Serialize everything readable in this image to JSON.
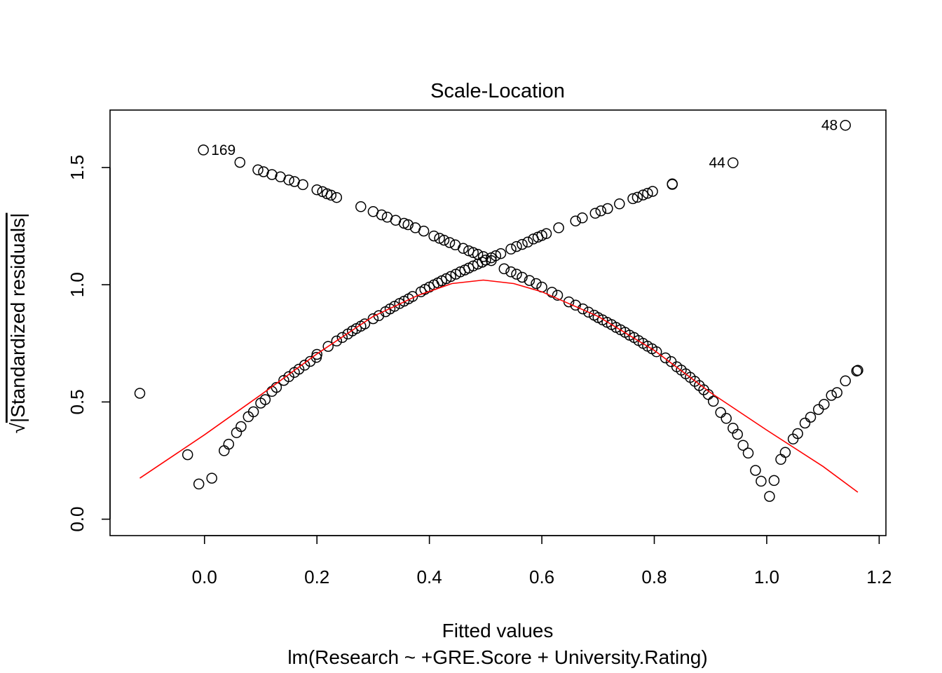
{
  "chart_data": {
    "type": "scatter",
    "title": "Scale-Location",
    "xlabel": "Fitted values",
    "subtitle": "lm(Research ~ +GRE.Score + University.Rating)",
    "ylabel_radical": "√",
    "ylabel": "|Standardized residuals|",
    "xlim": [
      -0.168,
      1.212
    ],
    "ylim": [
      -0.07,
      1.745
    ],
    "x_ticks": [
      0.0,
      0.2,
      0.4,
      0.6,
      0.8,
      1.0,
      1.2
    ],
    "x_tick_labels": [
      "0.0",
      "0.2",
      "0.4",
      "0.6",
      "0.8",
      "1.0",
      "1.2"
    ],
    "y_ticks": [
      0.0,
      0.5,
      1.0,
      1.5
    ],
    "y_tick_labels": [
      "0.0",
      "0.5",
      "1.0",
      "1.5"
    ],
    "colors": {
      "points": "#000000",
      "smooth": "#ff0000",
      "frame": "#000000"
    },
    "series": [
      {
        "marker": "open-circle",
        "points": [
          [
            -0.115,
            0.537
          ],
          [
            -0.03,
            0.275
          ],
          [
            -0.01,
            0.15
          ],
          [
            0.013,
            0.175
          ],
          [
            0.035,
            0.292
          ],
          [
            0.043,
            0.32
          ],
          [
            0.057,
            0.369
          ],
          [
            0.065,
            0.395
          ],
          [
            0.078,
            0.437
          ],
          [
            0.087,
            0.458
          ],
          [
            0.1,
            0.495
          ],
          [
            0.108,
            0.51
          ],
          [
            0.12,
            0.545
          ],
          [
            0.128,
            0.562
          ],
          [
            0.141,
            0.592
          ],
          [
            0.15,
            0.608
          ],
          [
            0.16,
            0.626
          ],
          [
            0.168,
            0.64
          ],
          [
            0.178,
            0.657
          ],
          [
            0.188,
            0.673
          ],
          [
            0.199,
            0.69
          ],
          [
            0.2,
            0.703
          ],
          [
            0.22,
            0.737
          ],
          [
            0.235,
            0.76
          ],
          [
            0.245,
            0.775
          ],
          [
            0.255,
            0.79
          ],
          [
            0.263,
            0.803
          ],
          [
            0.27,
            0.813
          ],
          [
            0.278,
            0.823
          ],
          [
            0.285,
            0.833
          ],
          [
            0.3,
            0.855
          ],
          [
            0.31,
            0.868
          ],
          [
            0.322,
            0.885
          ],
          [
            0.33,
            0.897
          ],
          [
            0.338,
            0.908
          ],
          [
            0.347,
            0.92
          ],
          [
            0.355,
            0.93
          ],
          [
            0.363,
            0.94
          ],
          [
            0.37,
            0.95
          ],
          [
            0.385,
            0.97
          ],
          [
            0.392,
            0.98
          ],
          [
            0.4,
            0.99
          ],
          [
            0.408,
            1.0
          ],
          [
            0.415,
            1.008
          ],
          [
            0.422,
            1.017
          ],
          [
            0.43,
            1.026
          ],
          [
            0.438,
            1.035
          ],
          [
            0.447,
            1.045
          ],
          [
            0.455,
            1.055
          ],
          [
            0.463,
            1.063
          ],
          [
            0.47,
            1.071
          ],
          [
            0.478,
            1.08
          ],
          [
            0.486,
            1.088
          ],
          [
            0.494,
            1.096
          ],
          [
            0.5,
            1.105
          ],
          [
            0.51,
            1.115
          ],
          [
            0.518,
            1.124
          ],
          [
            0.527,
            1.133
          ],
          [
            0.545,
            1.152
          ],
          [
            0.555,
            1.163
          ],
          [
            0.565,
            1.172
          ],
          [
            0.575,
            1.182
          ],
          [
            0.585,
            1.195
          ],
          [
            0.593,
            1.203
          ],
          [
            0.6,
            1.21
          ],
          [
            0.608,
            1.218
          ],
          [
            0.63,
            1.243
          ],
          [
            0.66,
            1.272
          ],
          [
            0.672,
            1.285
          ],
          [
            0.695,
            1.305
          ],
          [
            0.705,
            1.315
          ],
          [
            0.717,
            1.325
          ],
          [
            0.738,
            1.345
          ],
          [
            0.762,
            1.367
          ],
          [
            0.77,
            1.373
          ],
          [
            0.78,
            1.383
          ],
          [
            0.788,
            1.39
          ],
          [
            0.797,
            1.398
          ],
          [
            0.832,
            1.43
          ],
          [
            0.832,
            1.428
          ],
          [
            -0.002,
            1.575
          ],
          [
            0.063,
            1.522
          ],
          [
            0.095,
            1.49
          ],
          [
            0.105,
            1.482
          ],
          [
            0.12,
            1.47
          ],
          [
            0.135,
            1.46
          ],
          [
            0.15,
            1.447
          ],
          [
            0.16,
            1.44
          ],
          [
            0.175,
            1.427
          ],
          [
            0.2,
            1.405
          ],
          [
            0.21,
            1.397
          ],
          [
            0.218,
            1.388
          ],
          [
            0.225,
            1.382
          ],
          [
            0.235,
            1.372
          ],
          [
            0.278,
            1.333
          ],
          [
            0.3,
            1.312
          ],
          [
            0.315,
            1.298
          ],
          [
            0.325,
            1.288
          ],
          [
            0.34,
            1.275
          ],
          [
            0.355,
            1.262
          ],
          [
            0.362,
            1.256
          ],
          [
            0.375,
            1.243
          ],
          [
            0.39,
            1.229
          ],
          [
            0.408,
            1.208
          ],
          [
            0.418,
            1.198
          ],
          [
            0.426,
            1.19
          ],
          [
            0.436,
            1.18
          ],
          [
            0.446,
            1.17
          ],
          [
            0.46,
            1.155
          ],
          [
            0.47,
            1.145
          ],
          [
            0.478,
            1.137
          ],
          [
            0.486,
            1.13
          ],
          [
            0.496,
            1.12
          ],
          [
            0.51,
            1.103
          ],
          [
            0.533,
            1.068
          ],
          [
            0.545,
            1.055
          ],
          [
            0.555,
            1.045
          ],
          [
            0.565,
            1.032
          ],
          [
            0.578,
            1.018
          ],
          [
            0.59,
            1.005
          ],
          [
            0.6,
            0.99
          ],
          [
            0.618,
            0.968
          ],
          [
            0.628,
            0.955
          ],
          [
            0.648,
            0.927
          ],
          [
            0.66,
            0.913
          ],
          [
            0.673,
            0.897
          ],
          [
            0.683,
            0.883
          ],
          [
            0.693,
            0.87
          ],
          [
            0.7,
            0.86
          ],
          [
            0.708,
            0.85
          ],
          [
            0.716,
            0.84
          ],
          [
            0.724,
            0.83
          ],
          [
            0.732,
            0.818
          ],
          [
            0.74,
            0.808
          ],
          [
            0.748,
            0.797
          ],
          [
            0.756,
            0.785
          ],
          [
            0.764,
            0.775
          ],
          [
            0.772,
            0.762
          ],
          [
            0.78,
            0.75
          ],
          [
            0.788,
            0.738
          ],
          [
            0.796,
            0.727
          ],
          [
            0.804,
            0.714
          ],
          [
            0.82,
            0.688
          ],
          [
            0.83,
            0.672
          ],
          [
            0.84,
            0.65
          ],
          [
            0.848,
            0.636
          ],
          [
            0.856,
            0.62
          ],
          [
            0.864,
            0.605
          ],
          [
            0.872,
            0.588
          ],
          [
            0.88,
            0.57
          ],
          [
            0.888,
            0.552
          ],
          [
            0.896,
            0.532
          ],
          [
            0.905,
            0.503
          ],
          [
            0.918,
            0.455
          ],
          [
            0.928,
            0.43
          ],
          [
            0.94,
            0.388
          ],
          [
            0.948,
            0.362
          ],
          [
            0.958,
            0.315
          ],
          [
            0.967,
            0.282
          ],
          [
            0.98,
            0.208
          ],
          [
            0.99,
            0.162
          ],
          [
            1.005,
            0.097
          ],
          [
            1.013,
            0.165
          ],
          [
            1.025,
            0.255
          ],
          [
            1.033,
            0.285
          ],
          [
            1.047,
            0.342
          ],
          [
            1.055,
            0.365
          ],
          [
            1.068,
            0.41
          ],
          [
            1.078,
            0.435
          ],
          [
            1.092,
            0.468
          ],
          [
            1.102,
            0.49
          ],
          [
            1.115,
            0.528
          ],
          [
            1.125,
            0.54
          ],
          [
            1.14,
            0.59
          ],
          [
            1.16,
            0.632
          ],
          [
            1.162,
            0.635
          ],
          [
            0.94,
            1.52
          ],
          [
            1.14,
            1.68
          ]
        ]
      }
    ],
    "smooth_line": [
      [
        -0.115,
        0.175
      ],
      [
        0.0,
        0.36
      ],
      [
        0.1,
        0.53
      ],
      [
        0.2,
        0.705
      ],
      [
        0.3,
        0.865
      ],
      [
        0.38,
        0.955
      ],
      [
        0.44,
        1.005
      ],
      [
        0.496,
        1.02
      ],
      [
        0.55,
        1.005
      ],
      [
        0.6,
        0.97
      ],
      [
        0.7,
        0.865
      ],
      [
        0.8,
        0.72
      ],
      [
        0.9,
        0.54
      ],
      [
        1.0,
        0.38
      ],
      [
        1.1,
        0.225
      ],
      [
        1.162,
        0.115
      ]
    ],
    "annotations": [
      {
        "text": "169",
        "x": -0.002,
        "y": 1.575,
        "side": "right"
      },
      {
        "text": "44",
        "x": 0.94,
        "y": 1.52,
        "side": "left"
      },
      {
        "text": "48",
        "x": 1.14,
        "y": 1.68,
        "side": "left"
      }
    ]
  }
}
